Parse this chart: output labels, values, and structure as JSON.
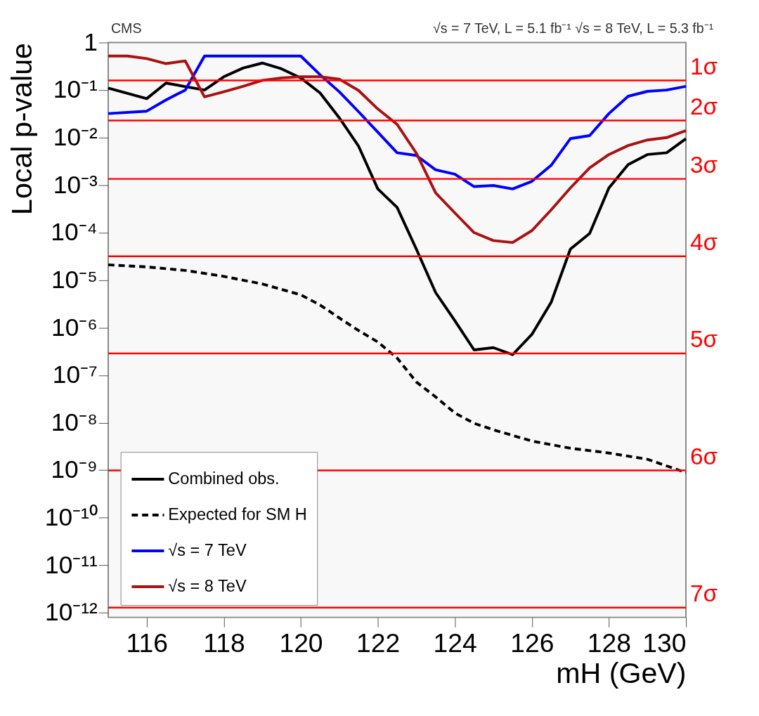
{
  "chart_data": {
    "type": "line",
    "xlabel": "mH (GeV)",
    "ylabel": "Local p-value",
    "annotations": [
      "CMS",
      "√s = 7 TeV, L = 5.1 fb⁻¹  √s = 8 TeV, L = 5.3 fb⁻¹"
    ],
    "log": true,
    "grid": false,
    "legend": "bottom left",
    "xlim": [
      115,
      130
    ],
    "xticks": [
      116,
      118,
      120,
      122,
      124,
      126,
      128,
      130
    ],
    "ylim": [
      8e-13,
      1
    ],
    "yticks": [
      1,
      {
        "value": 0.1,
        "label": "10⁻¹"
      },
      {
        "value": 0.01,
        "label": "10⁻²"
      },
      {
        "value": 0.001,
        "label": "10⁻³"
      },
      {
        "value": 0.0001,
        "label": "10⁻⁴"
      },
      {
        "value": 1e-05,
        "label": "10⁻⁵"
      },
      {
        "value": 1e-06,
        "label": "10⁻⁶"
      },
      {
        "value": 1e-07,
        "label": "10⁻⁷"
      },
      {
        "value": 1e-08,
        "label": "10⁻⁸"
      },
      {
        "value": 1e-09,
        "label": "10⁻⁹"
      },
      {
        "value": 1e-10,
        "label": "10⁻¹⁰"
      },
      {
        "value": 1e-11,
        "label": "10⁻¹¹"
      },
      {
        "value": 1e-12,
        "label": "10⁻¹²"
      }
    ],
    "series": [
      {
        "name": "Combined obs.",
        "color": "#000000",
        "line_style": "solid",
        "x": [
          115,
          116,
          116.5,
          117.5,
          118,
          118.5,
          119,
          119.5,
          120,
          120.5,
          121,
          121.5,
          122,
          122.5,
          123,
          123.5,
          124,
          124.5,
          125,
          125.5,
          126,
          126.5,
          127,
          127.5,
          128,
          128.5,
          129,
          129.5,
          130
        ],
        "values": [
          0.11,
          0.066,
          0.14,
          0.1,
          0.19,
          0.29,
          0.37,
          0.28,
          0.18,
          0.087,
          0.026,
          0.0066,
          0.00083,
          0.00034,
          4.5e-05,
          5.5e-06,
          1.4e-06,
          3.4e-07,
          3.8e-07,
          2.7e-07,
          7.2e-07,
          3.4e-06,
          4.5e-05,
          9.6e-05,
          0.00087,
          0.0027,
          0.0044,
          0.0048,
          0.0095
        ]
      },
      {
        "name": "Expected for SM H",
        "color": "#000000",
        "line_style": "dashed",
        "x": [
          115,
          116,
          117,
          118,
          119,
          120,
          120.5,
          121,
          121.5,
          122,
          122.5,
          123,
          123.5,
          124,
          124.5,
          125,
          126,
          127,
          128,
          129,
          130
        ],
        "values": [
          2.1e-05,
          1.9e-05,
          1.6e-05,
          1.2e-05,
          8.3e-06,
          4.9e-06,
          3e-06,
          1.6e-06,
          8.7e-07,
          5e-07,
          2.3e-07,
          7.2e-08,
          3.5e-08,
          1.6e-08,
          9.7e-09,
          7.1e-09,
          4.1e-09,
          2.9e-09,
          2.3e-09,
          1.7e-09,
          8.9e-10
        ]
      },
      {
        "name": "√s = 7 TeV",
        "color": "#0000ff",
        "line_style": "solid",
        "x": [
          115,
          116,
          116.5,
          117,
          117.5,
          120,
          120.5,
          121,
          121.5,
          122,
          122.5,
          123,
          123.5,
          124,
          124.5,
          125,
          125.5,
          126,
          126.5,
          127,
          127.5,
          128,
          128.5,
          129,
          129.5,
          130
        ],
        "values": [
          0.032,
          0.036,
          0.062,
          0.1,
          0.52,
          0.52,
          0.21,
          0.092,
          0.035,
          0.013,
          0.0048,
          0.0042,
          0.0021,
          0.0017,
          0.00093,
          0.00098,
          0.00083,
          0.0012,
          0.0026,
          0.0095,
          0.011,
          0.032,
          0.074,
          0.094,
          0.1,
          0.12
        ]
      },
      {
        "name": "√s = 8 TeV",
        "color": "#aa1111",
        "line_style": "solid",
        "x": [
          115,
          115.5,
          116,
          116.5,
          117,
          117.5,
          118,
          118.5,
          119,
          119.5,
          120,
          120.5,
          121,
          121.5,
          122,
          122.5,
          123,
          123.5,
          124,
          124.5,
          125,
          125.5,
          126,
          126.5,
          127,
          127.5,
          128,
          128.5,
          129,
          129.5,
          130
        ],
        "values": [
          0.52,
          0.52,
          0.46,
          0.36,
          0.41,
          0.072,
          0.092,
          0.12,
          0.16,
          0.18,
          0.19,
          0.19,
          0.17,
          0.098,
          0.04,
          0.019,
          0.0047,
          0.00069,
          0.00026,
          0.0001,
          6.8e-05,
          6.2e-05,
          0.00011,
          0.0003,
          0.00087,
          0.0023,
          0.0044,
          0.0068,
          0.0089,
          0.01,
          0.014
        ]
      }
    ],
    "ref_lines": [
      {
        "axis": "y",
        "value": 0.159,
        "label": "1σ",
        "color": "#ff0000"
      },
      {
        "axis": "y",
        "value": 0.0228,
        "label": "2σ",
        "color": "#ff0000"
      },
      {
        "axis": "y",
        "value": 0.00135,
        "label": "3σ",
        "color": "#ff0000"
      },
      {
        "axis": "y",
        "value": 3.17e-05,
        "label": "4σ",
        "color": "#ff0000"
      },
      {
        "axis": "y",
        "value": 2.87e-07,
        "label": "5σ",
        "color": "#ff0000"
      },
      {
        "axis": "y",
        "value": 9.87e-10,
        "label": "6σ",
        "color": "#ff0000"
      },
      {
        "axis": "y",
        "value": 1.28e-12,
        "label": "7σ",
        "color": "#ff0000"
      }
    ]
  }
}
